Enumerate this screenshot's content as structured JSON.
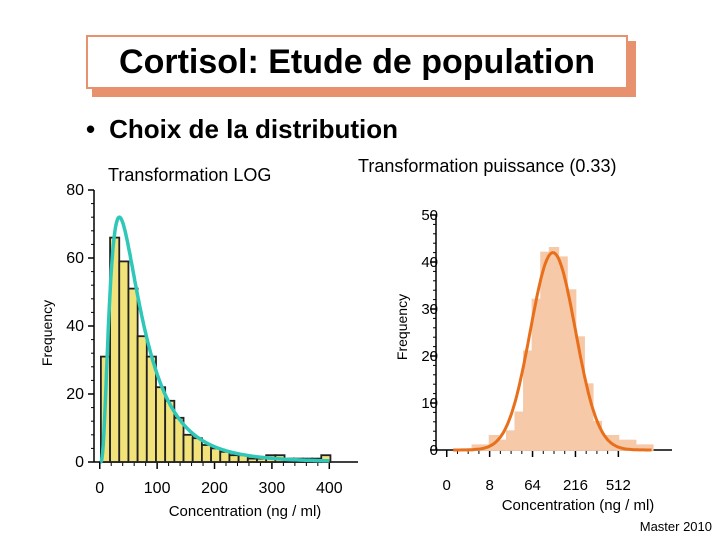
{
  "slide": {
    "title": "Cortisol: Etude de population",
    "bullet": "Choix de la distribution",
    "footer": "Master 2010",
    "colors": {
      "accent": "#e8916f",
      "left_bar": "#f2e27a",
      "left_curve": "#2fc8b8",
      "right_bar": "#f6c9a8",
      "right_curve": "#e8701c"
    }
  },
  "chart_data": [
    {
      "type": "bar",
      "title": "Transformation LOG",
      "xlabel": "Concentration (ng / ml)",
      "ylabel": "Frequency",
      "xlim": [
        -10,
        450
      ],
      "ylim": [
        0,
        80
      ],
      "x_ticks": [
        0,
        100,
        200,
        300,
        400
      ],
      "y_ticks": [
        0,
        20,
        40,
        60,
        80
      ],
      "bin_width": 16,
      "bin_starts": [
        2,
        18,
        34,
        50,
        66,
        82,
        98,
        114,
        130,
        146,
        162,
        178,
        194,
        210,
        226,
        242,
        258,
        274,
        290,
        306,
        322,
        338,
        354,
        370,
        386
      ],
      "values": [
        31,
        66,
        59,
        51,
        37,
        31,
        22,
        18,
        13,
        8,
        7,
        5,
        4,
        3,
        2,
        2,
        1,
        1,
        2,
        2,
        1,
        1,
        1,
        1,
        2
      ],
      "fit_curve": "log-normal"
    },
    {
      "type": "bar",
      "title": "Transformation puissance (0.33)",
      "xlabel": "Concentration (ng / ml)",
      "ylabel": "Frequency",
      "xlim": [
        -0.5,
        10.5
      ],
      "ylim": [
        0,
        50
      ],
      "x_ticks": [
        0,
        2,
        4,
        6,
        8
      ],
      "x_tick_labels": [
        "0",
        "8",
        "64",
        "216",
        "512"
      ],
      "y_ticks": [
        0,
        10,
        20,
        30,
        40,
        50
      ],
      "bin_width": 0.4,
      "bin_starts": [
        0.4,
        0.8,
        1.2,
        1.6,
        2.0,
        2.4,
        2.8,
        3.2,
        3.6,
        4.0,
        4.4,
        4.8,
        5.2,
        5.6,
        6.0,
        6.4,
        6.8,
        7.2,
        7.6,
        8.0,
        8.4,
        8.8,
        9.2
      ],
      "values": [
        0,
        0,
        1,
        1,
        3,
        2,
        4,
        8,
        21,
        32,
        42,
        43,
        41,
        34,
        24,
        14,
        6,
        3,
        3,
        2,
        2,
        1,
        1
      ],
      "fit_curve": "normal"
    }
  ]
}
